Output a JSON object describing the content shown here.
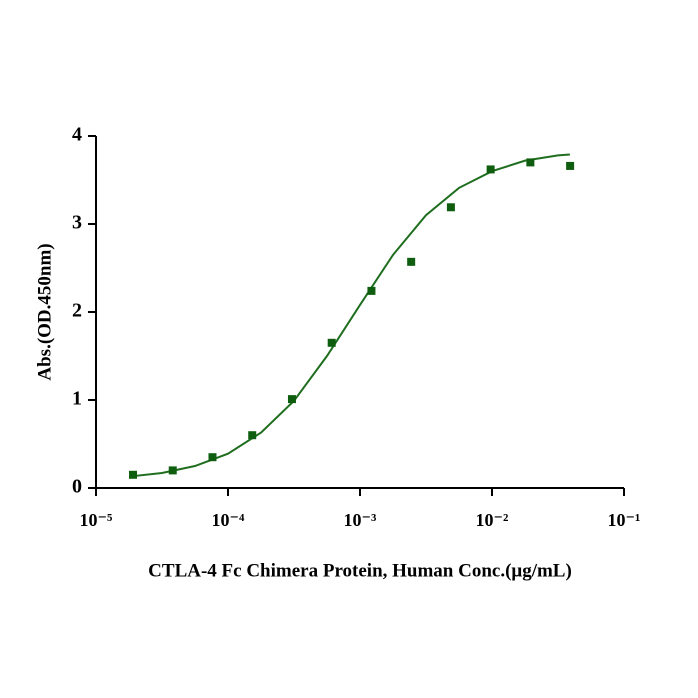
{
  "chart_data": {
    "type": "scatter",
    "x_label": "CTLA-4 Fc Chimera Protein, Human  Conc.(μg/mL)",
    "y_label": "Abs.(OD.450nm)",
    "x_scale": "log",
    "xlim": [
      1e-05,
      0.1
    ],
    "xticks": [
      {
        "value": 1e-05,
        "label": "10⁻⁵"
      },
      {
        "value": 0.0001,
        "label": "10⁻⁴"
      },
      {
        "value": 0.001,
        "label": "10⁻³"
      },
      {
        "value": 0.01,
        "label": "10⁻²"
      },
      {
        "value": 0.1,
        "label": "10⁻¹"
      }
    ],
    "ylim": [
      0,
      4
    ],
    "yticks": [
      0,
      1,
      2,
      3,
      4
    ],
    "series": [
      {
        "type": "scatter",
        "color": "#0f5e0f",
        "x": [
          1.9073486328125e-05,
          3.814697265625e-05,
          7.62939453125e-05,
          0.000152587890625,
          0.00030517578125,
          0.0006103515625,
          0.001220703125,
          0.00244140625,
          0.0048828125,
          0.009765625,
          0.01953125,
          0.0390625
        ],
        "values": [
          0.15,
          0.2,
          0.35,
          0.6,
          1.01,
          1.65,
          2.24,
          2.57,
          3.19,
          3.62,
          3.7,
          3.66
        ]
      },
      {
        "type": "line",
        "color": "#1f6e1f",
        "x": [
          1.78e-05,
          3.16e-05,
          5.62e-05,
          0.0001,
          0.000178,
          0.000316,
          0.000562,
          0.001,
          0.00178,
          0.00316,
          0.00562,
          0.01,
          0.0178,
          0.0316,
          0.0389
        ],
        "values": [
          0.13,
          0.17,
          0.25,
          0.39,
          0.63,
          0.99,
          1.5,
          2.08,
          2.65,
          3.1,
          3.41,
          3.6,
          3.72,
          3.78,
          3.79
        ]
      }
    ]
  }
}
